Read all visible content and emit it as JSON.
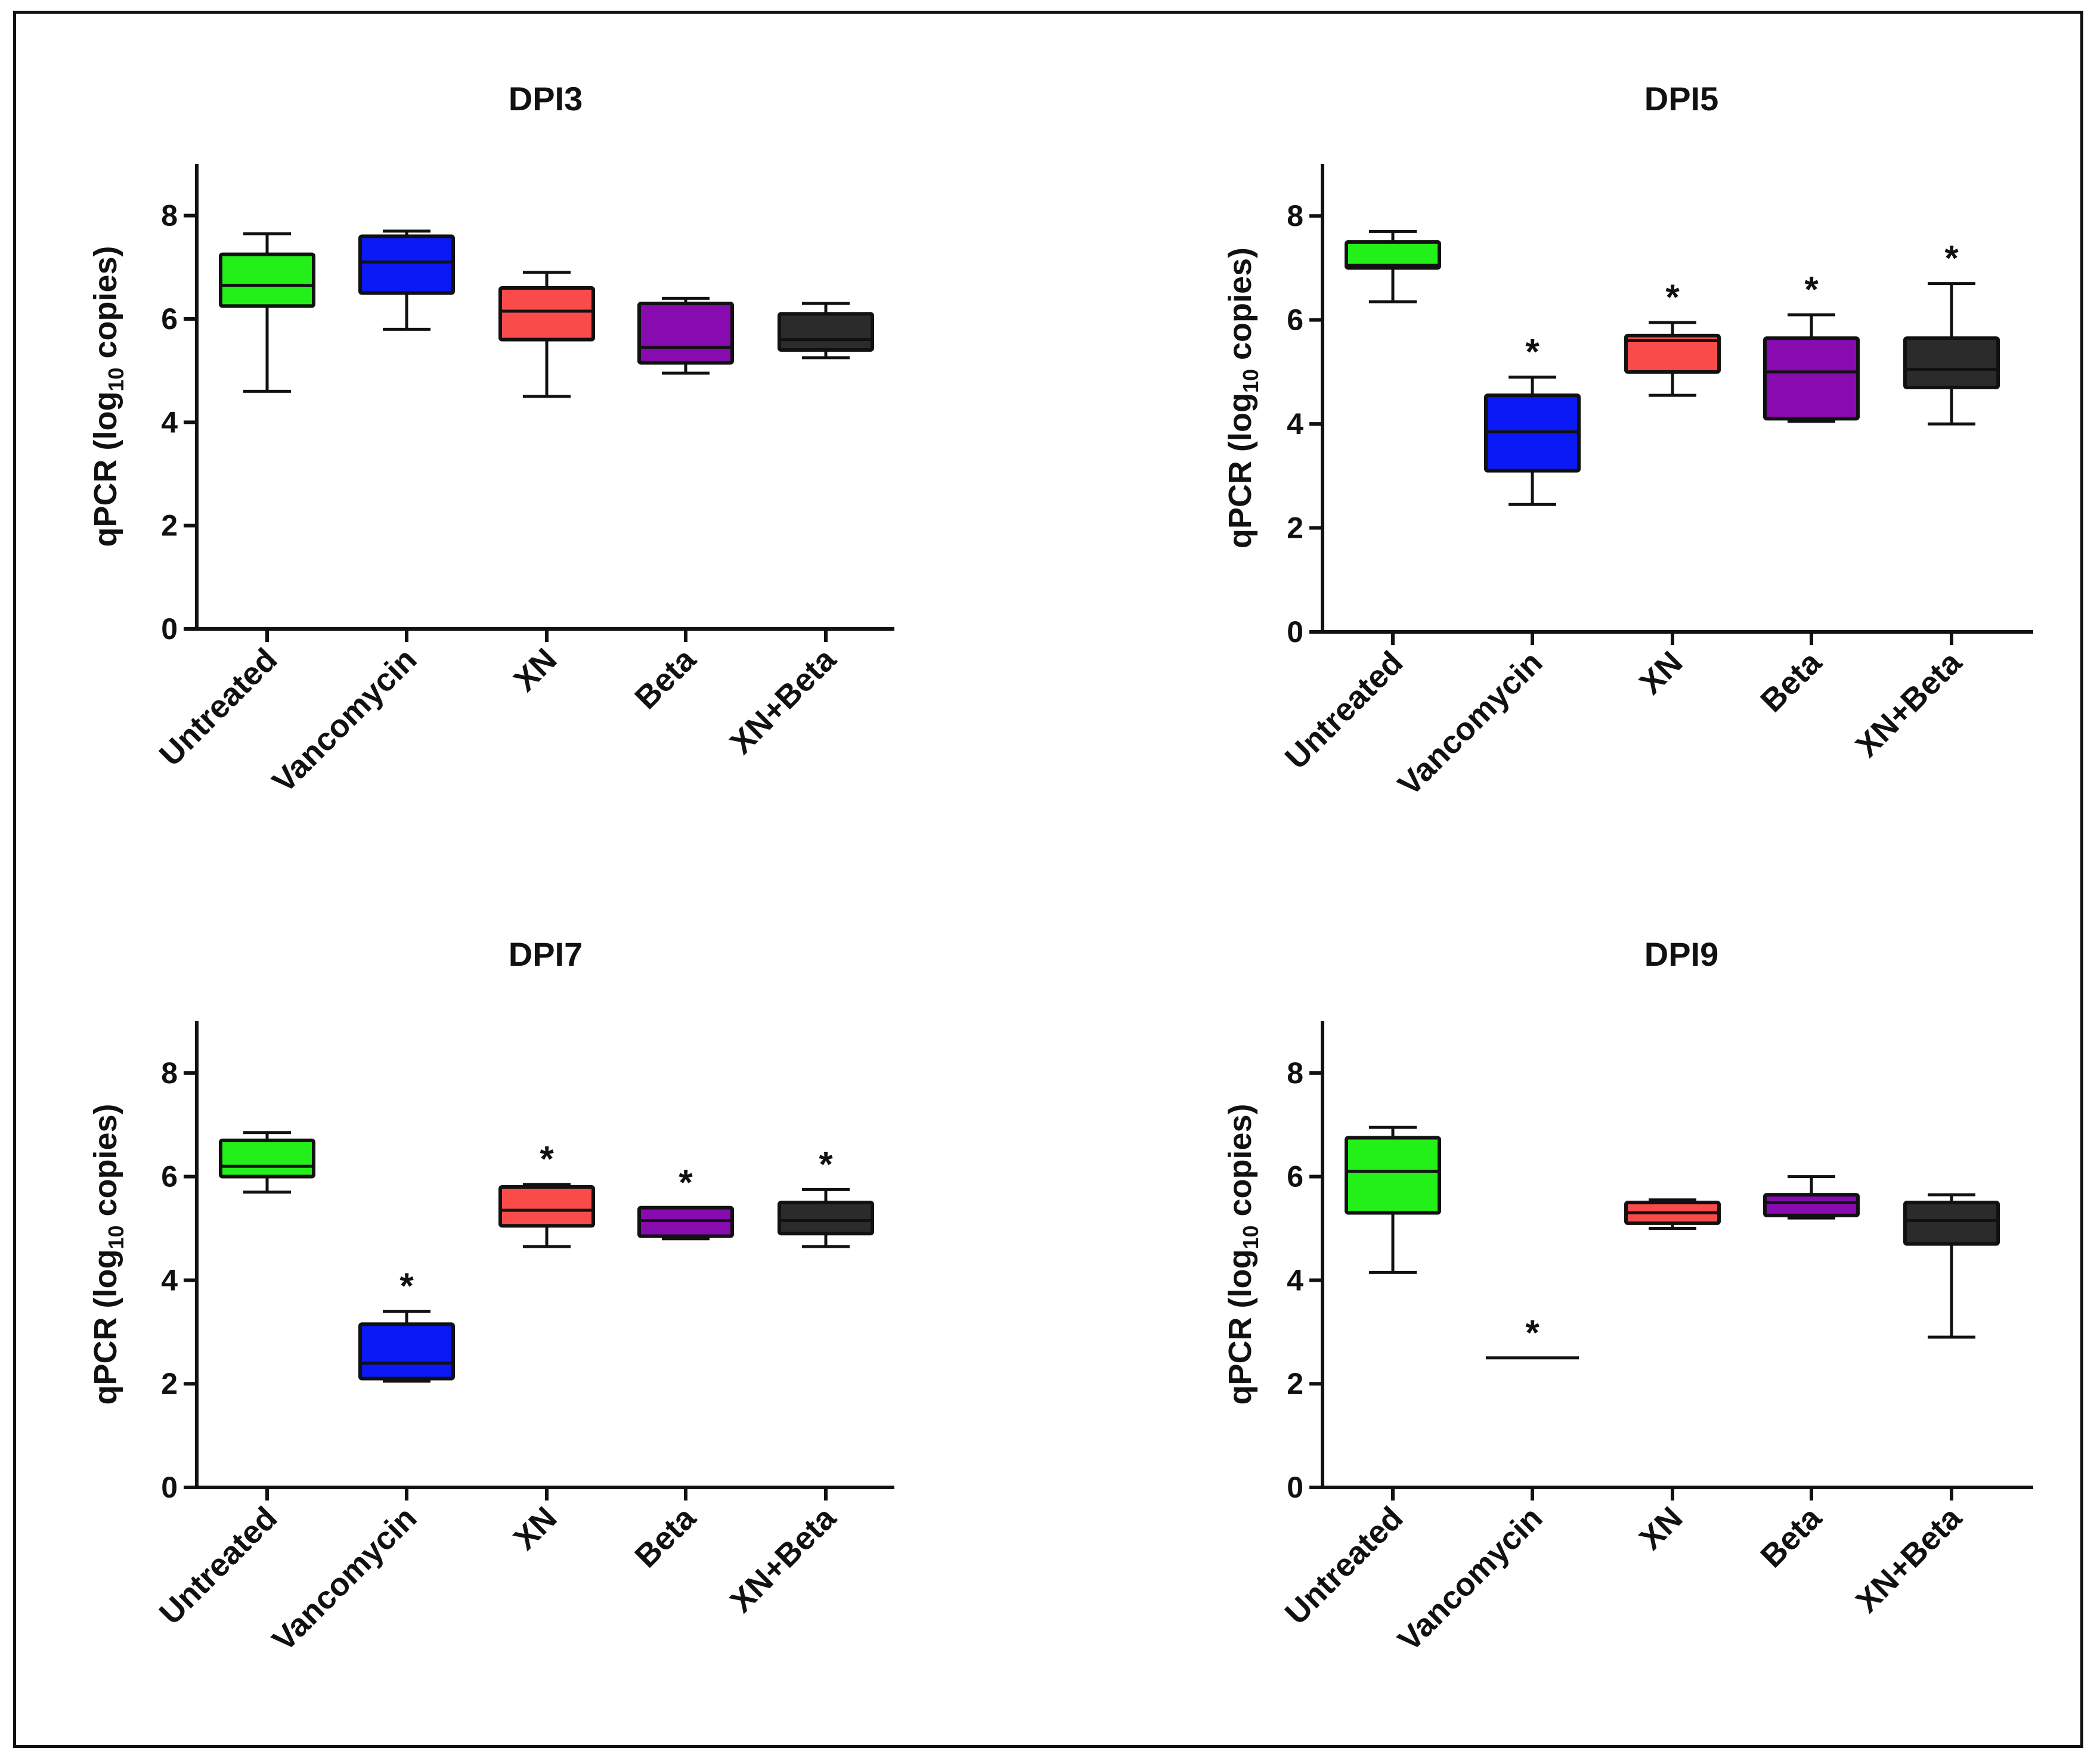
{
  "chart_data": [
    {
      "type": "box",
      "title": "DPI3",
      "ylabel_main": "qPCR (log",
      "ylabel_sub": "10",
      "ylabel_end": " copies)",
      "ylim": [
        0,
        9
      ],
      "yticks": [
        0,
        2,
        4,
        6,
        8
      ],
      "categories": [
        "Untreated",
        "Vancomycin",
        "XN",
        "Beta",
        "XN+Beta"
      ],
      "colors": [
        "#22f018",
        "#0a19f5",
        "#fa4b4b",
        "#880bb0",
        "#2b2b2b"
      ],
      "boxes": [
        {
          "min": 4.6,
          "q1": 6.25,
          "median": 6.65,
          "q3": 7.25,
          "max": 7.65
        },
        {
          "min": 5.8,
          "q1": 6.5,
          "median": 7.1,
          "q3": 7.6,
          "max": 7.7
        },
        {
          "min": 4.5,
          "q1": 5.6,
          "median": 6.15,
          "q3": 6.6,
          "max": 6.9
        },
        {
          "min": 4.95,
          "q1": 5.15,
          "median": 5.45,
          "q3": 6.3,
          "max": 6.4
        },
        {
          "min": 5.25,
          "q1": 5.4,
          "median": 5.6,
          "q3": 6.1,
          "max": 6.3
        }
      ],
      "annotations": [
        "",
        "",
        "",
        "",
        ""
      ]
    },
    {
      "type": "box",
      "title": "DPI5",
      "ylabel_main": "qPCR (log",
      "ylabel_sub": "10",
      "ylabel_end": " copies)",
      "ylim": [
        0,
        9
      ],
      "yticks": [
        0,
        2,
        4,
        6,
        8
      ],
      "categories": [
        "Untreated",
        "Vancomycin",
        "XN",
        "Beta",
        "XN+Beta"
      ],
      "colors": [
        "#22f018",
        "#0a19f5",
        "#fa4b4b",
        "#880bb0",
        "#2b2b2b"
      ],
      "boxes": [
        {
          "min": 6.35,
          "q1": 7.0,
          "median": 7.05,
          "q3": 7.5,
          "max": 7.7
        },
        {
          "min": 2.45,
          "q1": 3.1,
          "median": 3.85,
          "q3": 4.55,
          "max": 4.9
        },
        {
          "min": 4.55,
          "q1": 5.0,
          "median": 5.6,
          "q3": 5.7,
          "max": 5.95
        },
        {
          "min": 4.05,
          "q1": 4.1,
          "median": 5.0,
          "q3": 5.65,
          "max": 6.1
        },
        {
          "min": 4.0,
          "q1": 4.7,
          "median": 5.05,
          "q3": 5.65,
          "max": 6.7
        }
      ],
      "annotations": [
        "",
        "*",
        "*",
        "*",
        "*"
      ]
    },
    {
      "type": "box",
      "title": "DPI7",
      "ylabel_main": "qPCR (log",
      "ylabel_sub": "10",
      "ylabel_end": " copies)",
      "ylim": [
        0,
        9
      ],
      "yticks": [
        0,
        2,
        4,
        6,
        8
      ],
      "categories": [
        "Untreated",
        "Vancomycin",
        "XN",
        "Beta",
        "XN+Beta"
      ],
      "colors": [
        "#22f018",
        "#0a19f5",
        "#fa4b4b",
        "#880bb0",
        "#2b2b2b"
      ],
      "boxes": [
        {
          "min": 5.7,
          "q1": 6.0,
          "median": 6.2,
          "q3": 6.7,
          "max": 6.85
        },
        {
          "min": 2.05,
          "q1": 2.1,
          "median": 2.4,
          "q3": 3.15,
          "max": 3.4
        },
        {
          "min": 4.65,
          "q1": 5.05,
          "median": 5.35,
          "q3": 5.8,
          "max": 5.85
        },
        {
          "min": 4.8,
          "q1": 4.85,
          "median": 5.15,
          "q3": 5.4,
          "max": 5.4
        },
        {
          "min": 4.65,
          "q1": 4.9,
          "median": 5.15,
          "q3": 5.5,
          "max": 5.75
        }
      ],
      "annotations": [
        "",
        "*",
        "*",
        "*",
        "*"
      ]
    },
    {
      "type": "box",
      "title": "DPI9",
      "ylabel_main": "qPCR (log",
      "ylabel_sub": "10",
      "ylabel_end": " copies)",
      "ylim": [
        0,
        9
      ],
      "yticks": [
        0,
        2,
        4,
        6,
        8
      ],
      "categories": [
        "Untreated",
        "Vancomycin",
        "XN",
        "Beta",
        "XN+Beta"
      ],
      "colors": [
        "#22f018",
        "#0a19f5",
        "#fa4b4b",
        "#880bb0",
        "#2b2b2b"
      ],
      "boxes": [
        {
          "min": 4.15,
          "q1": 5.3,
          "median": 6.1,
          "q3": 6.75,
          "max": 6.95
        },
        {
          "min": 2.5,
          "q1": 2.5,
          "median": 2.5,
          "q3": 2.5,
          "max": 2.5
        },
        {
          "min": 5.0,
          "q1": 5.1,
          "median": 5.3,
          "q3": 5.5,
          "max": 5.55
        },
        {
          "min": 5.2,
          "q1": 5.25,
          "median": 5.5,
          "q3": 5.65,
          "max": 6.0
        },
        {
          "min": 2.9,
          "q1": 4.7,
          "median": 5.15,
          "q3": 5.5,
          "max": 5.65
        }
      ],
      "annotations": [
        "",
        "*",
        "",
        "",
        ""
      ]
    }
  ]
}
